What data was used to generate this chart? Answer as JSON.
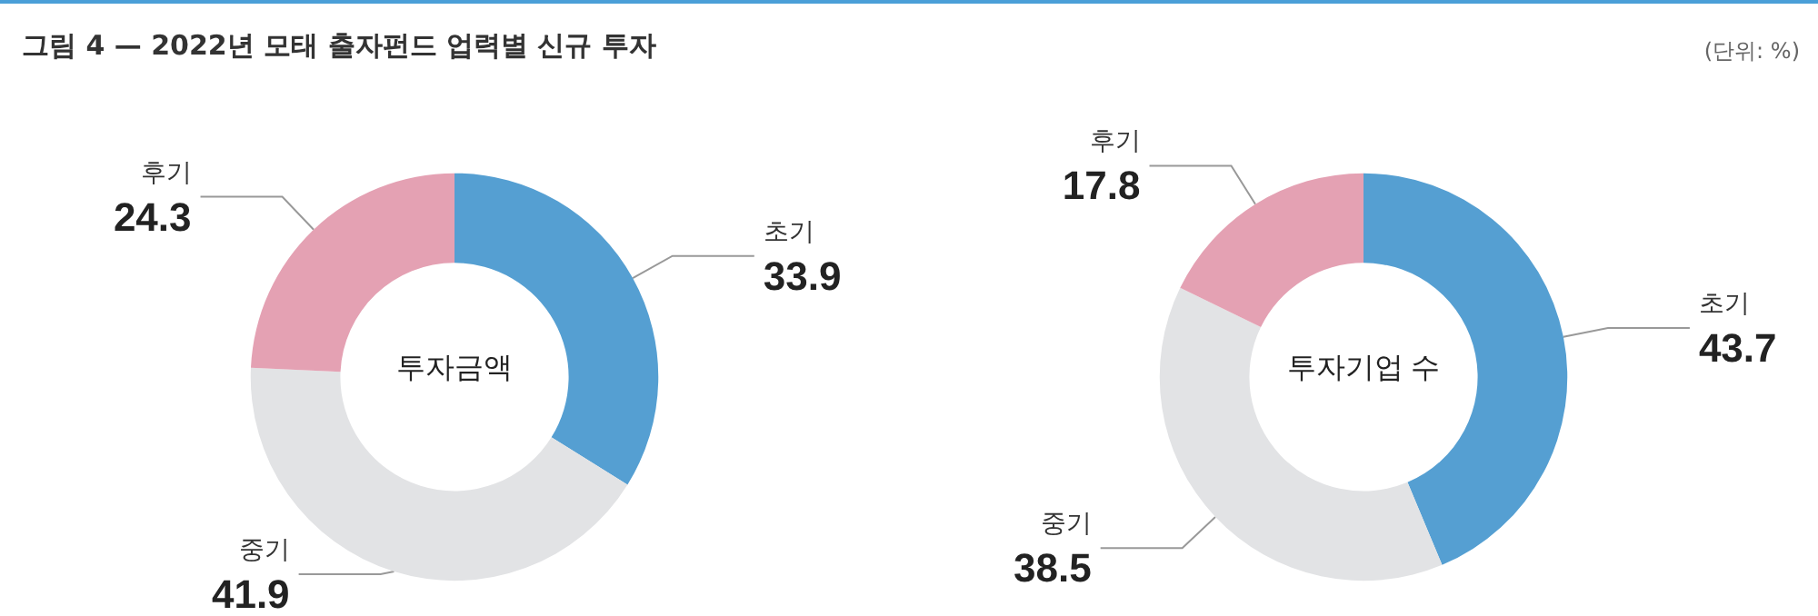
{
  "chart_data": [
    {
      "type": "donut",
      "title": "투자금액",
      "categories": [
        "초기",
        "중기",
        "후기"
      ],
      "values": [
        33.9,
        41.9,
        24.3
      ],
      "colors": [
        "#559fd2",
        "#e2e3e5",
        "#e4a1b3"
      ],
      "data_labels": true,
      "legend": false,
      "annotations": [
        "그림 4 — 2022년 모태 출자펀드 업력별 신규 투자",
        "(단위: %)"
      ]
    },
    {
      "type": "donut",
      "title": "투자기업 수",
      "categories": [
        "초기",
        "중기",
        "후기"
      ],
      "values": [
        43.7,
        38.5,
        17.8
      ],
      "colors": [
        "#559fd2",
        "#e2e3e5",
        "#e4a1b3"
      ],
      "data_labels": true,
      "legend": false
    }
  ]
}
